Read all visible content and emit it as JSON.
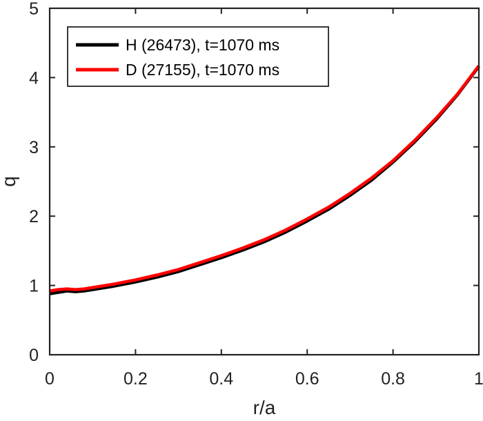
{
  "chart_data": {
    "type": "line",
    "xlabel": "r/a",
    "ylabel": "q",
    "xlim": [
      0,
      1
    ],
    "ylim": [
      0,
      5
    ],
    "xticks": [
      0,
      0.2,
      0.4,
      0.6,
      0.8,
      1
    ],
    "xtick_labels": [
      "0",
      "0.2",
      "0.4",
      "0.6",
      "0.8",
      "1"
    ],
    "yticks": [
      0,
      1,
      2,
      3,
      4,
      5
    ],
    "ytick_labels": [
      "0",
      "1",
      "2",
      "3",
      "4",
      "5"
    ],
    "grid": false,
    "legend_position": "top-left",
    "series": [
      {
        "name": "H (26473), t=1070 ms",
        "color": "#000000",
        "x": [
          0,
          0.02,
          0.04,
          0.06,
          0.08,
          0.1,
          0.15,
          0.2,
          0.25,
          0.3,
          0.35,
          0.4,
          0.45,
          0.5,
          0.55,
          0.6,
          0.65,
          0.7,
          0.75,
          0.8,
          0.85,
          0.9,
          0.95,
          1.0
        ],
        "y": [
          0.88,
          0.9,
          0.92,
          0.91,
          0.92,
          0.94,
          0.99,
          1.05,
          1.12,
          1.2,
          1.3,
          1.4,
          1.51,
          1.63,
          1.77,
          1.93,
          2.1,
          2.3,
          2.52,
          2.78,
          3.07,
          3.39,
          3.75,
          4.16
        ]
      },
      {
        "name": "D (27155), t=1070 ms",
        "color": "#ff0000",
        "x": [
          0,
          0.02,
          0.04,
          0.06,
          0.08,
          0.1,
          0.15,
          0.2,
          0.25,
          0.3,
          0.35,
          0.4,
          0.45,
          0.5,
          0.55,
          0.6,
          0.65,
          0.7,
          0.75,
          0.8,
          0.85,
          0.9,
          0.95,
          1.0
        ],
        "y": [
          0.92,
          0.94,
          0.95,
          0.94,
          0.95,
          0.97,
          1.02,
          1.08,
          1.15,
          1.23,
          1.33,
          1.43,
          1.54,
          1.66,
          1.8,
          1.96,
          2.13,
          2.33,
          2.55,
          2.8,
          3.09,
          3.41,
          3.76,
          4.17
        ]
      }
    ]
  }
}
